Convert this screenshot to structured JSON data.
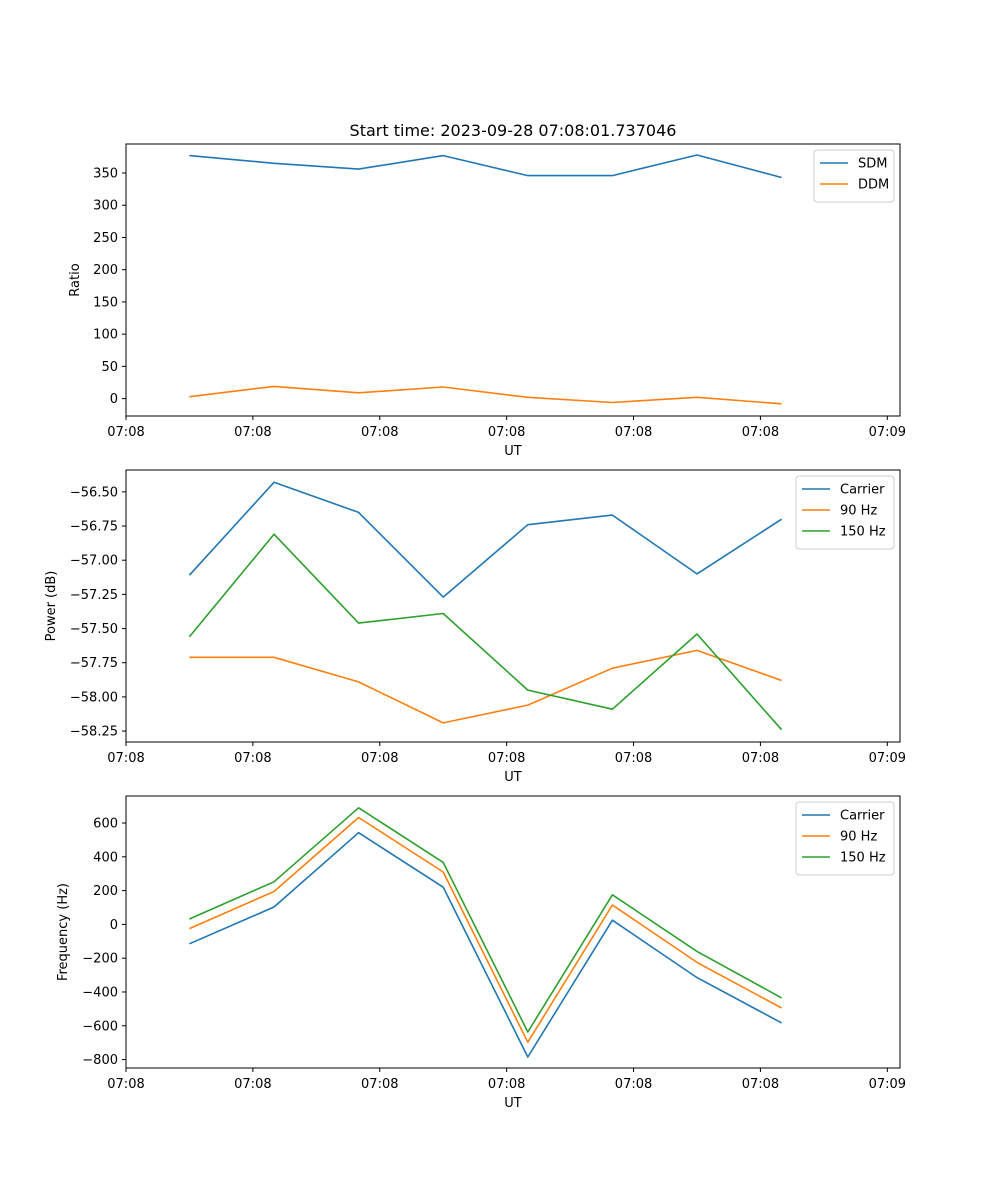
{
  "chart_data": [
    {
      "type": "line",
      "title": "Start time: 2023-09-28 07:08:01.737046",
      "xlabel": "UT",
      "ylabel": "Ratio",
      "x": [
        0,
        1,
        2,
        3,
        4,
        5,
        6,
        7
      ],
      "xlim": [
        -0.75,
        8.4
      ],
      "x_ticks": [
        -0.75,
        0.75,
        2.25,
        3.75,
        5.25,
        6.75,
        8.25
      ],
      "x_tick_labels": [
        "07:08",
        "07:08",
        "07:08",
        "07:08",
        "07:08",
        "07:08",
        "07:09"
      ],
      "ylim": [
        -27,
        395
      ],
      "y_ticks": [
        0,
        50,
        100,
        150,
        200,
        250,
        300,
        350
      ],
      "legend_position": "upper-right",
      "grid": false,
      "series": [
        {
          "name": "SDM",
          "color": "#1f77b4",
          "values": [
            377,
            365,
            356,
            377,
            346,
            346,
            378,
            343
          ]
        },
        {
          "name": "DDM",
          "color": "#ff7f0e",
          "values": [
            3,
            19,
            9,
            18,
            2,
            -6,
            2,
            -8
          ]
        }
      ]
    },
    {
      "type": "line",
      "title": "",
      "xlabel": "UT",
      "ylabel": "Power (dB)",
      "x": [
        0,
        1,
        2,
        3,
        4,
        5,
        6,
        7
      ],
      "xlim": [
        -0.75,
        8.4
      ],
      "x_ticks": [
        -0.75,
        0.75,
        2.25,
        3.75,
        5.25,
        6.75,
        8.25
      ],
      "x_tick_labels": [
        "07:08",
        "07:08",
        "07:08",
        "07:08",
        "07:08",
        "07:08",
        "07:09"
      ],
      "ylim": [
        -58.33,
        -56.34
      ],
      "y_ticks": [
        -58.25,
        -58.0,
        -57.75,
        -57.5,
        -57.25,
        -57.0,
        -56.75,
        -56.5
      ],
      "y_tick_labels": [
        "−58.25",
        "−58.00",
        "−57.75",
        "−57.50",
        "−57.25",
        "−57.00",
        "−56.75",
        "−56.50"
      ],
      "legend_position": "upper-right",
      "grid": false,
      "series": [
        {
          "name": "Carrier",
          "color": "#1f77b4",
          "values": [
            -57.11,
            -56.43,
            -56.65,
            -57.27,
            -56.74,
            -56.67,
            -57.1,
            -56.7
          ]
        },
        {
          "name": "90 Hz",
          "color": "#ff7f0e",
          "values": [
            -57.71,
            -57.71,
            -57.89,
            -58.19,
            -58.06,
            -57.79,
            -57.66,
            -57.88
          ]
        },
        {
          "name": "150 Hz",
          "color": "#2ca02c",
          "values": [
            -57.56,
            -56.81,
            -57.46,
            -57.39,
            -57.95,
            -58.09,
            -57.54,
            -58.24
          ]
        }
      ]
    },
    {
      "type": "line",
      "title": "",
      "xlabel": "UT",
      "ylabel": "Frequency (Hz)",
      "x": [
        0,
        1,
        2,
        3,
        4,
        5,
        6,
        7
      ],
      "xlim": [
        -0.75,
        8.4
      ],
      "x_ticks": [
        -0.75,
        0.75,
        2.25,
        3.75,
        5.25,
        6.75,
        8.25
      ],
      "x_tick_labels": [
        "07:08",
        "07:08",
        "07:08",
        "07:08",
        "07:08",
        "07:08",
        "07:09"
      ],
      "ylim": [
        -850,
        760
      ],
      "y_ticks": [
        -800,
        -600,
        -400,
        -200,
        0,
        200,
        400,
        600
      ],
      "y_tick_labels": [
        "−800",
        "−600",
        "−400",
        "−200",
        "0",
        "200",
        "400",
        "600"
      ],
      "legend_position": "upper-right",
      "grid": false,
      "series": [
        {
          "name": "Carrier",
          "color": "#1f77b4",
          "values": [
            -115,
            103,
            543,
            220,
            -785,
            25,
            -315,
            -583
          ]
        },
        {
          "name": "90 Hz",
          "color": "#ff7f0e",
          "values": [
            -25,
            195,
            633,
            310,
            -697,
            115,
            -225,
            -495
          ]
        },
        {
          "name": "150 Hz",
          "color": "#2ca02c",
          "values": [
            32,
            252,
            690,
            367,
            -637,
            175,
            -160,
            -435
          ]
        }
      ]
    }
  ]
}
